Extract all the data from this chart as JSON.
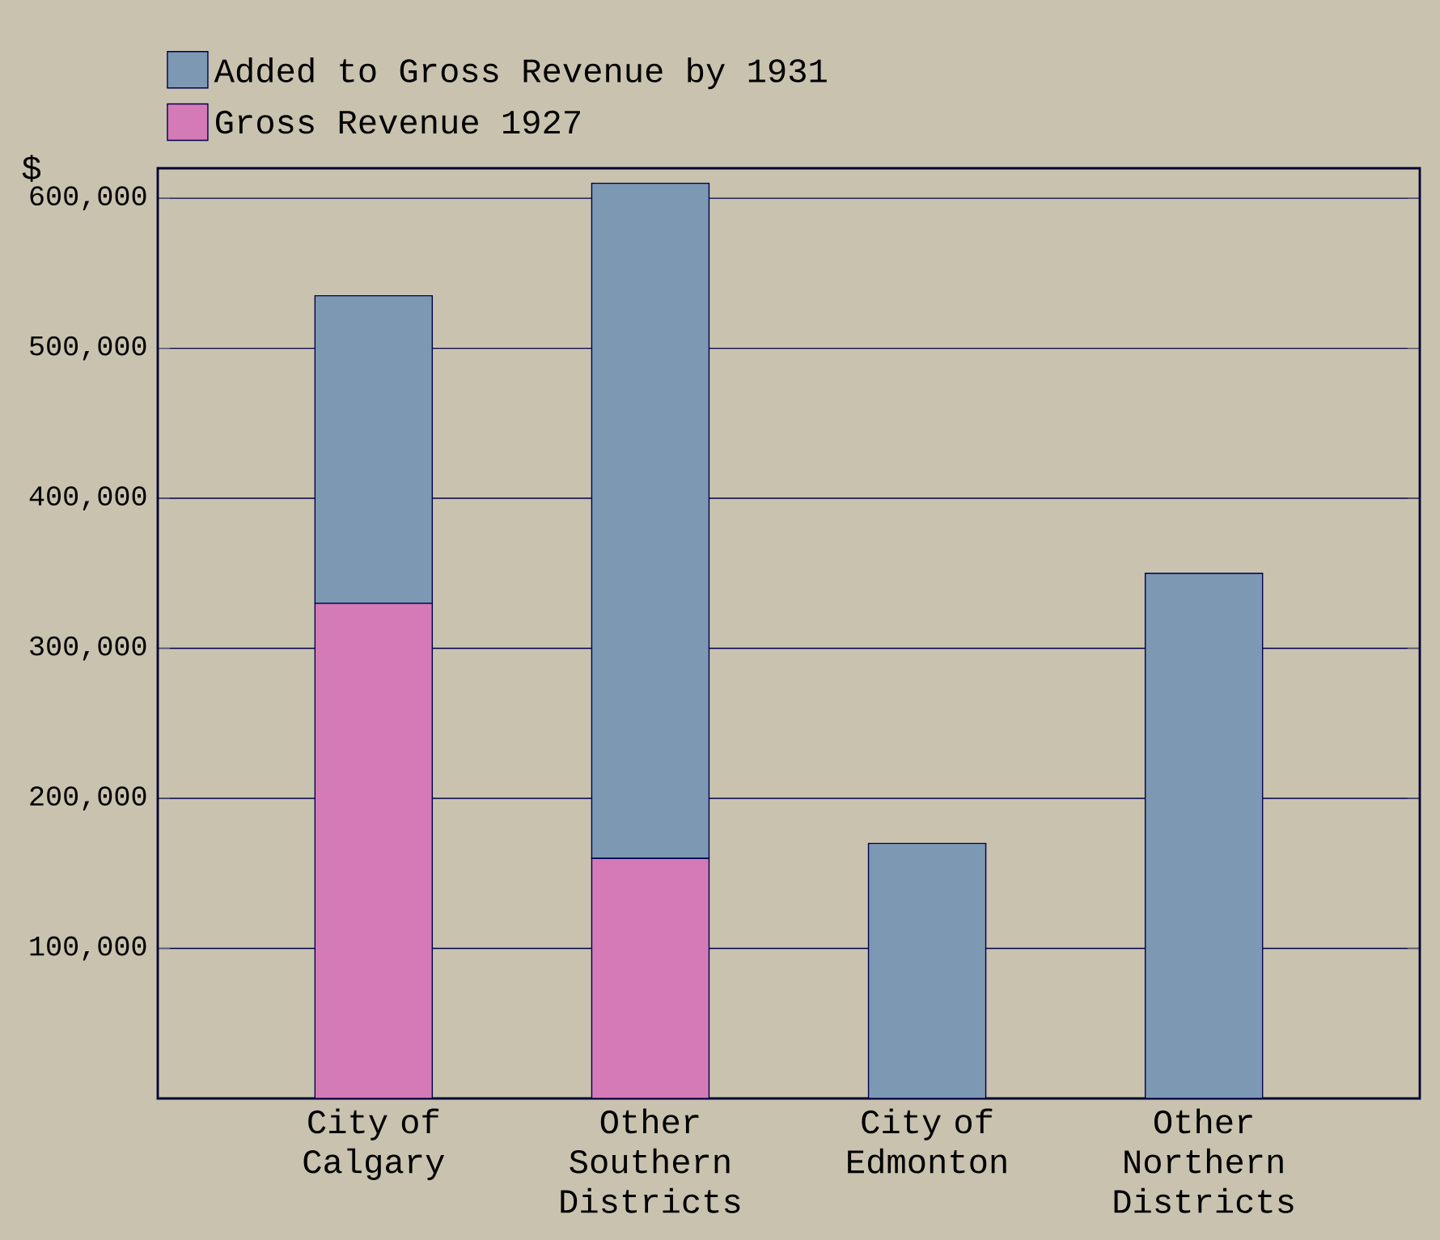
{
  "chart_data": {
    "type": "bar",
    "stacked": true,
    "ylabel": "$",
    "categories": [
      "City of Calgary",
      "Other Southern Districts",
      "City of Edmonton",
      "Other Northern Districts"
    ],
    "series": [
      {
        "name": "Gross Revenue 1927",
        "color": "#d47ab6",
        "values": [
          330000,
          160000,
          0,
          0
        ]
      },
      {
        "name": "Added to Gross Revenue by 1931",
        "color": "#7d98b3",
        "values": [
          205000,
          450000,
          170000,
          350000
        ]
      }
    ],
    "ylim": [
      0,
      620000
    ],
    "yticks": [
      {
        "value": 100000,
        "label": "100,000"
      },
      {
        "value": 200000,
        "label": "200,000"
      },
      {
        "value": 300000,
        "label": "300,000"
      },
      {
        "value": 400000,
        "label": "400,000"
      },
      {
        "value": 500000,
        "label": "500,000"
      },
      {
        "value": 600000,
        "label": "600,000"
      }
    ],
    "grid": "y",
    "legend": "top left"
  }
}
